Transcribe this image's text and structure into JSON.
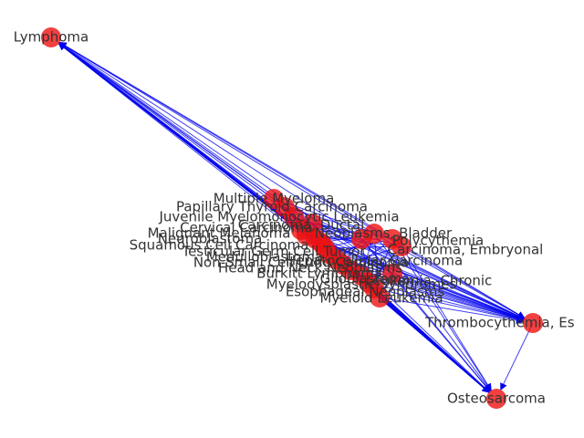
{
  "graph": {
    "colors": {
      "node": "#ee1111",
      "edge": "#0000ee",
      "label": "#333333",
      "background": "#ffffff"
    },
    "nodes": [
      {
        "id": "lymphoma",
        "label": "Lymphoma",
        "role": "outer"
      },
      {
        "id": "thrombocythemia",
        "label": "Thrombocythemia, Es",
        "role": "outer"
      },
      {
        "id": "osteosarcoma",
        "label": "Osteosarcoma",
        "role": "outer"
      },
      {
        "id": "multiple-myeloma",
        "label": "Multiple Myeloma",
        "role": "cluster"
      },
      {
        "id": "papillary-thyroid",
        "label": "Papillary Thyroid Carcinoma",
        "role": "cluster"
      },
      {
        "id": "juvenile-myelomonocytic",
        "label": "Juvenile Myelomonocytic Leukemia",
        "role": "cluster"
      },
      {
        "id": "carcinoma-ductal",
        "label": "Carcinoma, Ductal",
        "role": "cluster"
      },
      {
        "id": "cervical-carcinoma",
        "label": "Cervical Carcinoma",
        "role": "cluster"
      },
      {
        "id": "malignant-melanoma",
        "label": "Malignant Melanoma",
        "role": "cluster"
      },
      {
        "id": "neuroblastoma",
        "label": "Neuroblastoma",
        "role": "cluster"
      },
      {
        "id": "squamous-carcinoma",
        "label": "Squamous Cell Carcinoma",
        "role": "cluster"
      },
      {
        "id": "testicular-germ-cell",
        "label": "Testicular Germ Cell Tumor",
        "role": "cluster"
      },
      {
        "id": "medulloblastoma",
        "label": "Medulloblastoma",
        "role": "cluster"
      },
      {
        "id": "non-small-cell",
        "label": "Non-Small Cell Lung Carcinoma",
        "role": "cluster"
      },
      {
        "id": "head-neck",
        "label": "Head and Neck Neoplasms",
        "role": "cluster"
      },
      {
        "id": "burkitt",
        "label": "Burkitt Lymphoma",
        "role": "cluster"
      },
      {
        "id": "glioblastoma",
        "label": "Glioblastoma",
        "role": "cluster"
      },
      {
        "id": "myelodysplastic",
        "label": "Myelodysplastic Syndromes",
        "role": "cluster"
      },
      {
        "id": "esophageal",
        "label": "Esophageal Neoplasms",
        "role": "cluster"
      },
      {
        "id": "myeloid-leukemia",
        "label": "Myeloid Leukemia",
        "role": "cluster"
      },
      {
        "id": "leukemia-chronic",
        "label": "Leukemia, Chronic",
        "role": "cluster"
      },
      {
        "id": "carcinoma-embryonal",
        "label": "Carcinoma, Embryonal",
        "role": "cluster"
      },
      {
        "id": "polycythemia",
        "label": "Polycythemia",
        "role": "cluster"
      },
      {
        "id": "bladder",
        "label": "Neoplasms, Bladder",
        "role": "cluster"
      },
      {
        "id": "hepatocellular",
        "label": "Hepatocellular Carcinoma",
        "role": "cluster"
      }
    ],
    "edges": [
      {
        "source": "thrombocythemia",
        "target": "osteosarcoma"
      }
    ]
  }
}
